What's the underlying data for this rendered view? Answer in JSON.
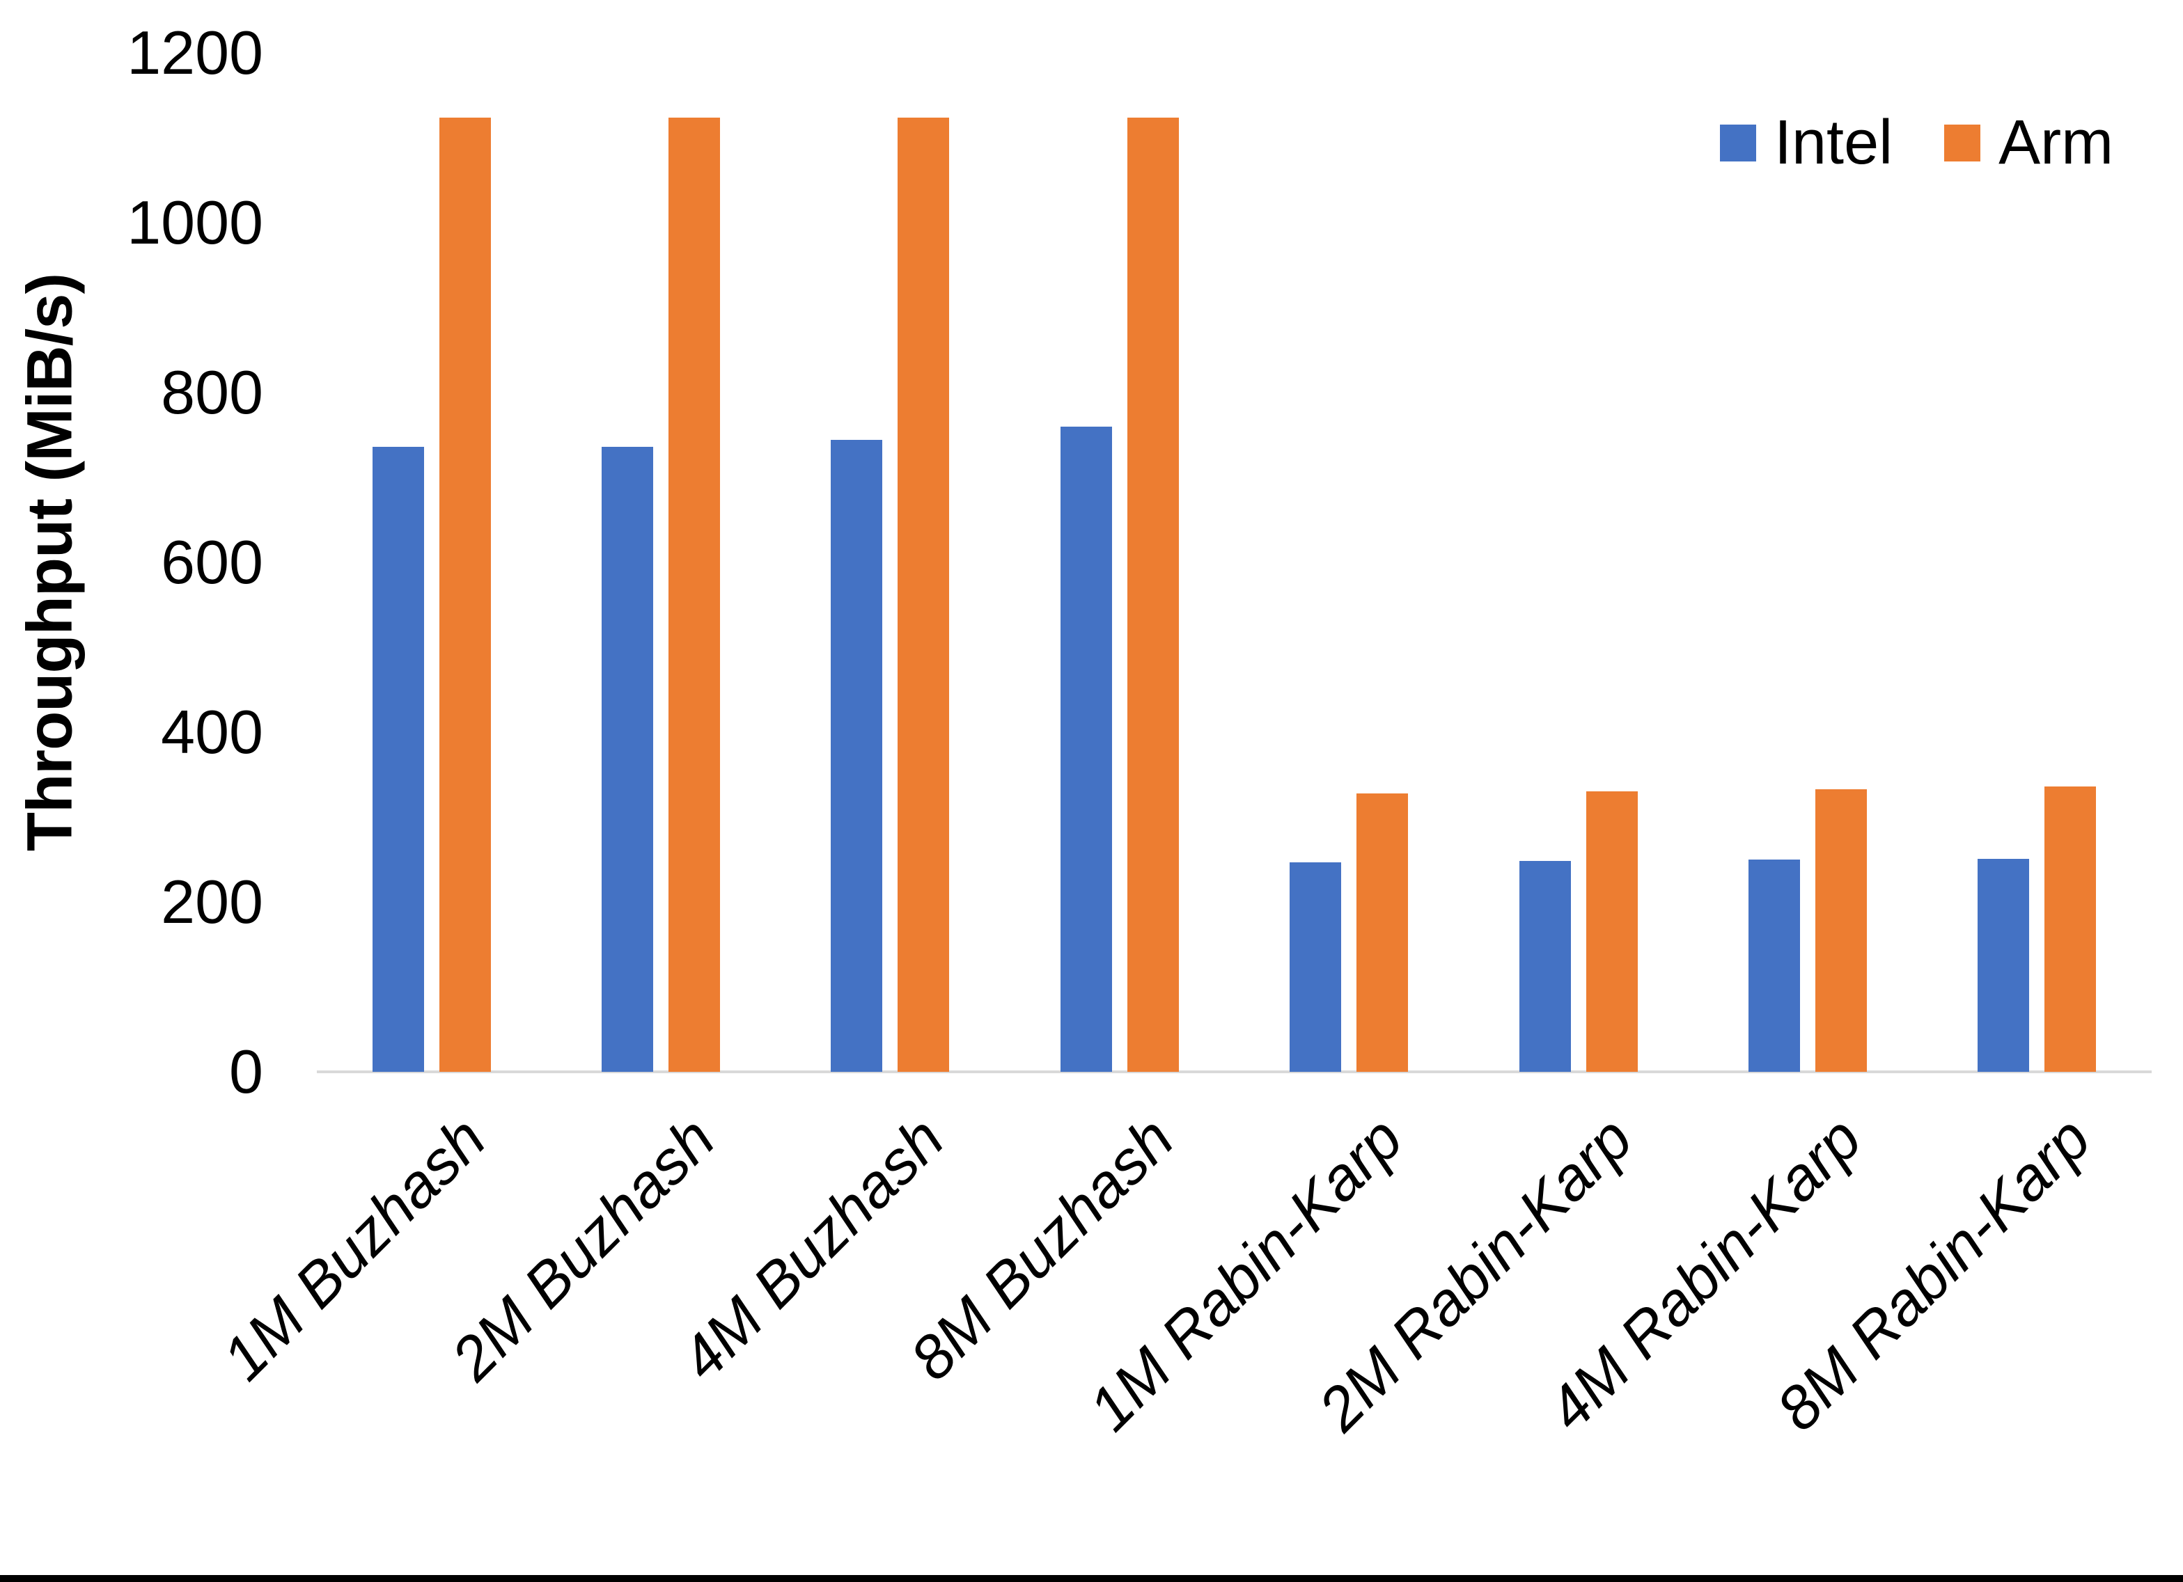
{
  "chart_data": {
    "type": "bar",
    "title": "",
    "xlabel": "",
    "ylabel": "Throughput (MiB/s)",
    "ylim": [
      0,
      1200
    ],
    "yticks": [
      0,
      200,
      400,
      600,
      800,
      1000,
      1200
    ],
    "grid": false,
    "legend_position": "top-right",
    "categories": [
      "1M Buzhash",
      "2M Buzhash",
      "4M Buzhash",
      "8M Buzhash",
      "1M Rabin-Karp",
      "2M Rabin-Karp",
      "4M Rabin-Karp",
      "8M Rabin-Karp"
    ],
    "series": [
      {
        "name": "Intel",
        "color": "#4472C4",
        "values": [
          736,
          736,
          744,
          760,
          247,
          248,
          250,
          251
        ]
      },
      {
        "name": "Arm",
        "color": "#ED7D31",
        "values": [
          1124,
          1124,
          1124,
          1124,
          328,
          330,
          333,
          336
        ]
      }
    ],
    "axis_line_color": "#D9D9D9",
    "text_color": "#000000",
    "background_color": "#FFFFFF",
    "bottom_border_color": "#000000"
  }
}
